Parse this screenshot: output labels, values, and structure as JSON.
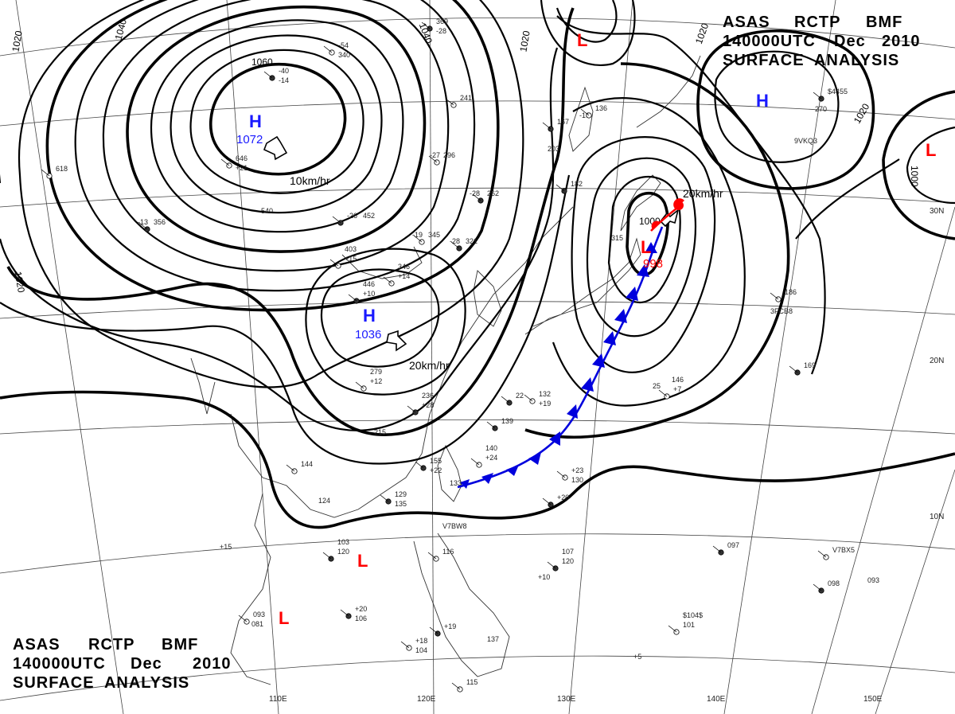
{
  "header_top": {
    "line1": [
      "ASAS",
      "RCTP",
      "BMF"
    ],
    "line2": [
      "140000UTC",
      "Dec",
      "2010"
    ],
    "line3": "SURFACE  ANALYSIS"
  },
  "header_bottom": {
    "line1": [
      "ASAS",
      "RCTP",
      "BMF"
    ],
    "line2": [
      "140000UTC",
      "Dec",
      "2010"
    ],
    "line3": "SURFACE  ANALYSIS"
  },
  "colors": {
    "high": "#1a1aff",
    "low": "#ff0000",
    "cold_front": "#0000dd",
    "warm_front": "#ff0000",
    "isobar": "#000000"
  },
  "grid_labels": {
    "lon": [
      "110E",
      "120E",
      "130E",
      "140E",
      "150E"
    ],
    "lat": [
      "30N",
      "20N",
      "10N"
    ]
  },
  "pressure_systems": [
    {
      "type": "H",
      "value": "1072"
    },
    {
      "type": "H",
      "value": "1036"
    },
    {
      "type": "H",
      "value": ""
    },
    {
      "type": "L",
      "value": "998"
    },
    {
      "type": "L",
      "value": ""
    },
    {
      "type": "L",
      "value": ""
    },
    {
      "type": "L",
      "value": ""
    },
    {
      "type": "L",
      "value": ""
    }
  ],
  "isobar_labels": [
    "1020",
    "1040",
    "1060",
    "1040",
    "1020",
    "1020",
    "1020",
    "1000",
    "1000",
    "1020"
  ],
  "movement_labels": [
    "10km/hr",
    "20km/hr",
    "20km/hr"
  ],
  "station_labels": [
    "369",
    "-28",
    "-54",
    "340",
    "-40",
    "-14",
    "618",
    "-13",
    "356",
    "-27",
    "296",
    "-28",
    "262",
    "-19",
    "345",
    "-28",
    "321",
    "346",
    "+14",
    "446",
    "+10",
    "403",
    "+15",
    "452",
    "-26",
    "540",
    "646",
    "+21",
    "167",
    "-16",
    "136",
    "203",
    "182",
    "315",
    "241",
    "270",
    "$4455",
    "9VKQ3",
    "186",
    "3FCB8",
    "169",
    "146",
    "+7",
    "25",
    "22",
    "279",
    "+12",
    "236",
    "+28",
    "215",
    "132",
    "+19",
    "139",
    "140",
    "+24",
    "133",
    "155",
    "+22",
    "144",
    "124",
    "129",
    "135",
    "+23",
    "130",
    "+20",
    "V7BW8",
    "116",
    "103",
    "120",
    "+15",
    "093",
    "081",
    "+20",
    "106",
    "+18",
    "104",
    "+19",
    "137",
    "115",
    "107",
    "120",
    "+10",
    "V7BX5",
    "093",
    "098",
    "$104$",
    "101",
    "+5",
    "097",
    "28"
  ]
}
